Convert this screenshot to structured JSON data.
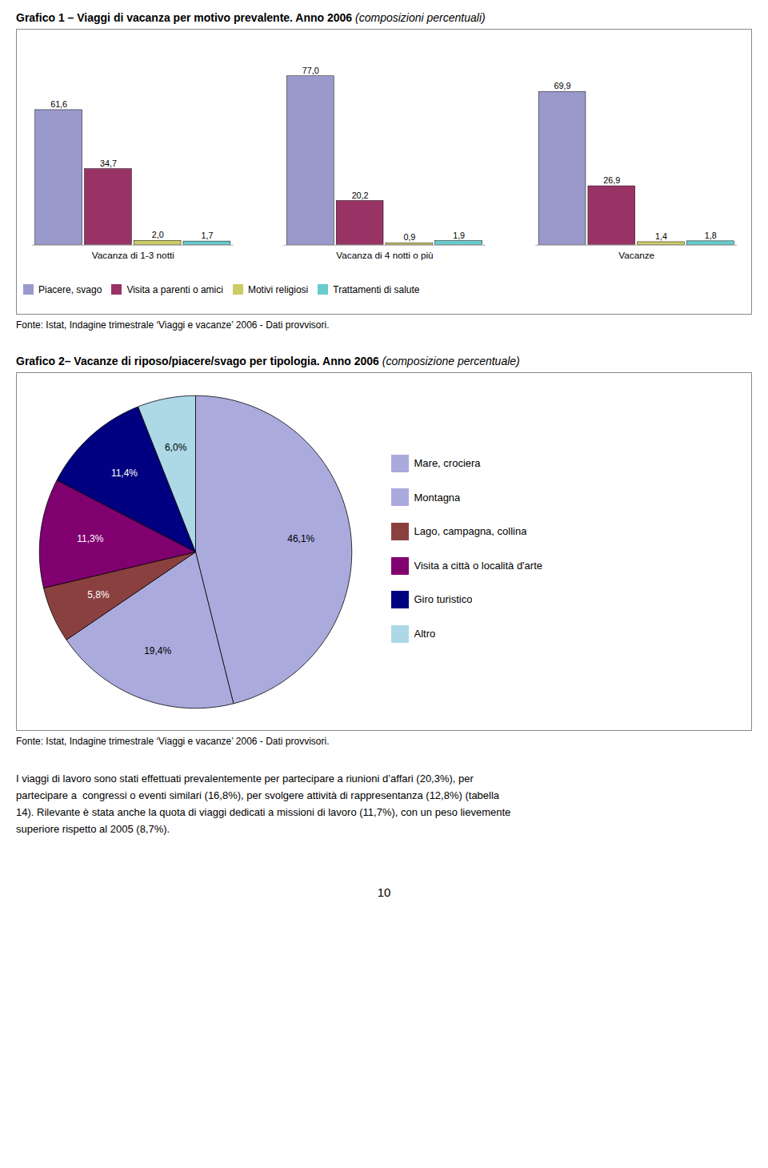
{
  "chart_data": [
    {
      "type": "bar",
      "title": "Grafico 1 – Viaggi di vacanza per motivo prevalente. Anno 2006",
      "subtitle": "(composizioni percentuali)",
      "categories": [
        "Vacanza di 1-3 notti",
        "Vacanza di 4 notti o più",
        "Vacanze"
      ],
      "series": [
        {
          "name": "Piacere, svago",
          "color": "#9999cc",
          "values": [
            61.6,
            77.0,
            69.9
          ],
          "value_labels": [
            "61,6",
            "77,0",
            "69,9"
          ]
        },
        {
          "name": "Visita a parenti o amici",
          "color": "#993366",
          "values": [
            34.7,
            20.2,
            26.9
          ],
          "value_labels": [
            "34,7",
            "20,2",
            "26,9"
          ]
        },
        {
          "name": "Motivi religiosi",
          "color": "#cccc66",
          "values": [
            2.0,
            0.9,
            1.4
          ],
          "value_labels": [
            "2,0",
            "0,9",
            "1,4"
          ]
        },
        {
          "name": "Trattamenti di salute",
          "color": "#66cccc",
          "values": [
            1.7,
            1.9,
            1.8
          ],
          "value_labels": [
            "1,7",
            "1,9",
            "1,8"
          ]
        }
      ],
      "ylim": [
        0,
        88
      ],
      "data_labels": true,
      "tick_labels": "x",
      "grid": false,
      "legend": "bottom",
      "annotations": [
        "Fonte: Istat, Indagine trimestrale ‘Viaggi e vacanze’ 2006 - Dati provvisori."
      ]
    },
    {
      "type": "pie",
      "title": "Grafico 2– Vacanze di riposo/piacere/svago per tipologia. Anno 2006",
      "subtitle": "(composizione percentuale)",
      "categories": [
        "Mare, crociera",
        "Montagna",
        "Lago, campagna, collina",
        "Visita a città o località d'arte",
        "Giro turistico",
        "Altro"
      ],
      "values": [
        46.1,
        19.4,
        5.8,
        11.3,
        11.4,
        6.0
      ],
      "value_labels": [
        "46,1%",
        "19,4%",
        "5,8%",
        "11,3%",
        "11,4%",
        "6,0%"
      ],
      "colors": [
        "#aaaadd",
        "#aaaadd",
        "#8b4040",
        "#800070",
        "#000080",
        "#add8e6"
      ],
      "data_labels": true,
      "legend": "right",
      "annotations": [
        "Fonte: Istat, Indagine trimestrale ‘Viaggi e vacanze’ 2006 - Dati provvisori.",
        "I viaggi di lavoro sono stati effettuati prevalentemente per partecipare a riunioni d’affari (20,3%), per",
        "partecipare a  congressi o eventi similari (16,8%), per svolgere attività di rappresentanza (12,8%) (tabella",
        "14). Rilevante è stata anche la quota di viaggi dedicati a missioni di lavoro (11,7%), con un peso lievemente",
        "superiore rispetto al 2005 (8,7%).",
        "10"
      ]
    }
  ]
}
